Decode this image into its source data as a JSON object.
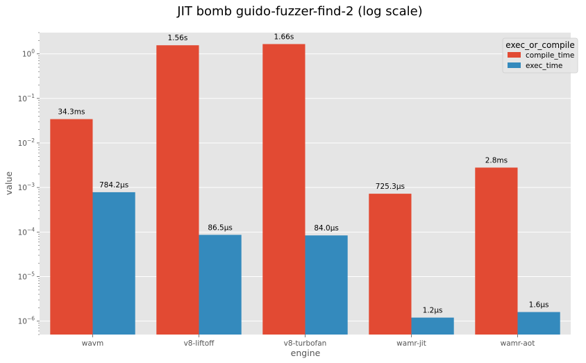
{
  "chart_data": {
    "type": "bar",
    "title": "JIT bomb guido-fuzzer-find-2 (log scale)",
    "xlabel": "engine",
    "ylabel": "value",
    "yscale": "log",
    "ylim": [
      5e-07,
      3
    ],
    "yticks": [
      {
        "value": 1e-06,
        "label": "10",
        "exp": "−6"
      },
      {
        "value": 1e-05,
        "label": "10",
        "exp": "−5"
      },
      {
        "value": 0.0001,
        "label": "10",
        "exp": "−4"
      },
      {
        "value": 0.001,
        "label": "10",
        "exp": "−3"
      },
      {
        "value": 0.01,
        "label": "10",
        "exp": "−2"
      },
      {
        "value": 0.1,
        "label": "10",
        "exp": "−1"
      },
      {
        "value": 1,
        "label": "10",
        "exp": "0"
      }
    ],
    "categories": [
      "wavm",
      "v8-liftoff",
      "v8-turbofan",
      "wamr-jit",
      "wamr-aot"
    ],
    "series": [
      {
        "name": "compile_time",
        "color": "#E24A33",
        "values": [
          0.0343,
          1.56,
          1.66,
          0.0007253,
          0.0028
        ],
        "labels": [
          "34.3ms",
          "1.56s",
          "1.66s",
          "725.3μs",
          "2.8ms"
        ]
      },
      {
        "name": "exec_time",
        "color": "#348ABD",
        "values": [
          0.0007842,
          8.65e-05,
          8.4e-05,
          1.2e-06,
          1.6e-06
        ],
        "labels": [
          "784.2μs",
          "86.5μs",
          "84.0μs",
          "1.2μs",
          "1.6μs"
        ]
      }
    ],
    "legend": {
      "title": "exec_or_compile",
      "position": "top-right"
    },
    "grid": true
  }
}
